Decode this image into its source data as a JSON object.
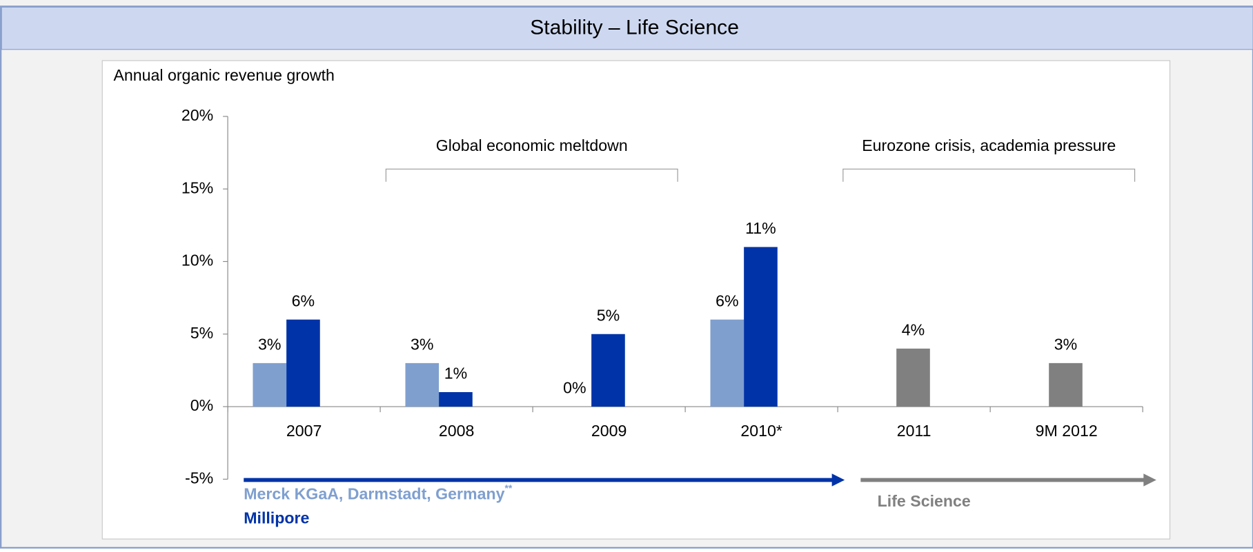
{
  "header": {
    "title": "Stability – Life Science"
  },
  "chart_data": {
    "type": "bar",
    "y_label": "Annual organic revenue growth",
    "categories": [
      "2007",
      "2008",
      "2009",
      "2010*",
      "2011",
      "9M 2012"
    ],
    "series": [
      {
        "name": "Merck KGaA, Darmstadt, Germany",
        "name_mark": "**",
        "color": "#7f9fcf",
        "values": [
          3,
          3,
          0,
          6,
          null,
          null
        ],
        "value_labels": [
          "3%",
          "3%",
          "0%",
          "6%",
          null,
          null
        ]
      },
      {
        "name": "Millipore",
        "color": "#0033a8",
        "values": [
          6,
          1,
          5,
          11,
          null,
          null
        ],
        "value_labels": [
          "6%",
          "1%",
          "5%",
          "11%",
          null,
          null
        ]
      },
      {
        "name": "Life Science",
        "color": "#808080",
        "values": [
          null,
          null,
          null,
          null,
          4,
          3
        ],
        "value_labels": [
          null,
          null,
          null,
          null,
          "4%",
          "3%"
        ]
      }
    ],
    "ylim": [
      -5,
      20
    ],
    "yticks": [
      {
        "value": -5,
        "label": "-5%"
      },
      {
        "value": 0,
        "label": "0%"
      },
      {
        "value": 5,
        "label": "5%"
      },
      {
        "value": 10,
        "label": "10%"
      },
      {
        "value": 15,
        "label": "15%"
      },
      {
        "value": 20,
        "label": "20%"
      }
    ],
    "annotations": [
      {
        "text": "Global economic meltdown"
      },
      {
        "text": "Eurozone crisis, academia pressure"
      }
    ]
  }
}
